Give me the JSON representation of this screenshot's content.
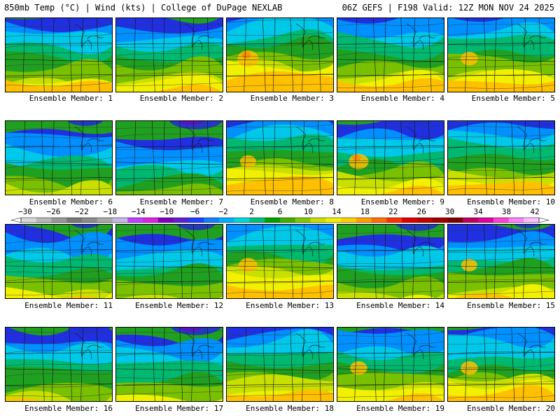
{
  "header": {
    "title_left": "850mb Temp (°C) | Wind (kts) | College of DuPage NEXLAB",
    "title_right": "06Z GEFS | F198 Valid: 12Z MON NOV 24 2025"
  },
  "members": [
    {
      "label": "Ensemble Member: 1",
      "warm": 0.55,
      "cold": 0.35
    },
    {
      "label": "Ensemble Member: 2",
      "warm": 0.5,
      "cold": 0.3
    },
    {
      "label": "Ensemble Member: 3",
      "warm": 0.85,
      "cold": 0.05
    },
    {
      "label": "Ensemble Member: 4",
      "warm": 0.6,
      "cold": 0.15
    },
    {
      "label": "Ensemble Member: 5",
      "warm": 0.7,
      "cold": 0.2
    },
    {
      "label": "Ensemble Member: 6",
      "warm": 0.3,
      "cold": 0.55
    },
    {
      "label": "Ensemble Member: 7",
      "warm": 0.25,
      "cold": 0.8
    },
    {
      "label": "Ensemble Member: 8",
      "warm": 0.65,
      "cold": 0.1
    },
    {
      "label": "Ensemble Member: 9",
      "warm": 0.8,
      "cold": 0.5
    },
    {
      "label": "Ensemble Member: 10",
      "warm": 0.55,
      "cold": 0.25
    },
    {
      "label": "Ensemble Member: 11",
      "warm": 0.35,
      "cold": 0.45
    },
    {
      "label": "Ensemble Member: 12",
      "warm": 0.45,
      "cold": 0.6
    },
    {
      "label": "Ensemble Member: 13",
      "warm": 0.75,
      "cold": 0.1
    },
    {
      "label": "Ensemble Member: 14",
      "warm": 0.45,
      "cold": 0.65
    },
    {
      "label": "Ensemble Member: 15",
      "warm": 0.65,
      "cold": 0.45
    },
    {
      "label": "Ensemble Member: 16",
      "warm": 0.45,
      "cold": 0.55
    },
    {
      "label": "Ensemble Member: 17",
      "warm": 0.6,
      "cold": 0.75
    },
    {
      "label": "Ensemble Member: 18",
      "warm": 0.55,
      "cold": 0.15
    },
    {
      "label": "Ensemble Member: 19",
      "warm": 0.7,
      "cold": 0.4
    },
    {
      "label": "Ensemble Member: 20",
      "warm": 0.7,
      "cold": 0.3
    }
  ],
  "colorbar": {
    "labels": [
      "−30",
      "−26",
      "−22",
      "−18",
      "−14",
      "−10",
      "−6",
      "−2",
      "2",
      "6",
      "10",
      "14",
      "18",
      "22",
      "26",
      "30",
      "34",
      "38",
      "42"
    ],
    "colors": [
      "#d8d8d8",
      "#b8b8b8",
      "#989898",
      "#787878",
      "#8c8c8c",
      "#a8a8a8",
      "#c8b8e8",
      "#c040ff",
      "#e020e0",
      "#8000c0",
      "#6020d0",
      "#2040ff",
      "#1080ff",
      "#00b0ff",
      "#00d8d8",
      "#00c080",
      "#00a000",
      "#40b000",
      "#80c800",
      "#c8e000",
      "#f0f000",
      "#ffd000",
      "#ffa000",
      "#ff7000",
      "#ff3000",
      "#e00000",
      "#c00000",
      "#a00000",
      "#800000",
      "#c00060",
      "#e000a0",
      "#ff40d0",
      "#ff80ff",
      "#ffc0ff"
    ]
  }
}
